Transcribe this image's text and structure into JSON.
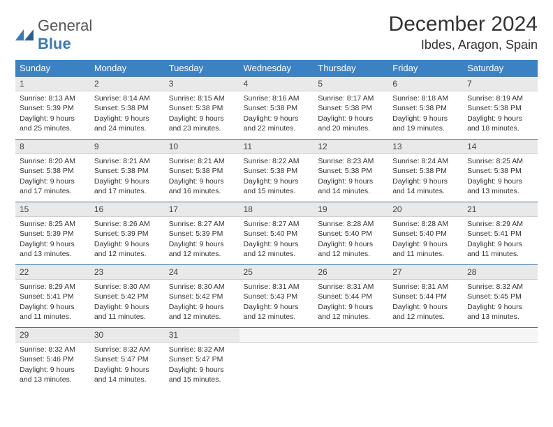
{
  "brand": {
    "general": "General",
    "blue": "Blue"
  },
  "title": "December 2024",
  "location": "Ibdes, Aragon, Spain",
  "colors": {
    "header_bg": "#3b82c4",
    "header_text": "#ffffff",
    "row_divider": "#3b6fa0",
    "daynum_bg": "#e9e9e9",
    "text": "#333333"
  },
  "weekdays": [
    "Sunday",
    "Monday",
    "Tuesday",
    "Wednesday",
    "Thursday",
    "Friday",
    "Saturday"
  ],
  "weeks": [
    [
      {
        "n": "1",
        "sr": "Sunrise: 8:13 AM",
        "ss": "Sunset: 5:39 PM",
        "d1": "Daylight: 9 hours",
        "d2": "and 25 minutes."
      },
      {
        "n": "2",
        "sr": "Sunrise: 8:14 AM",
        "ss": "Sunset: 5:38 PM",
        "d1": "Daylight: 9 hours",
        "d2": "and 24 minutes."
      },
      {
        "n": "3",
        "sr": "Sunrise: 8:15 AM",
        "ss": "Sunset: 5:38 PM",
        "d1": "Daylight: 9 hours",
        "d2": "and 23 minutes."
      },
      {
        "n": "4",
        "sr": "Sunrise: 8:16 AM",
        "ss": "Sunset: 5:38 PM",
        "d1": "Daylight: 9 hours",
        "d2": "and 22 minutes."
      },
      {
        "n": "5",
        "sr": "Sunrise: 8:17 AM",
        "ss": "Sunset: 5:38 PM",
        "d1": "Daylight: 9 hours",
        "d2": "and 20 minutes."
      },
      {
        "n": "6",
        "sr": "Sunrise: 8:18 AM",
        "ss": "Sunset: 5:38 PM",
        "d1": "Daylight: 9 hours",
        "d2": "and 19 minutes."
      },
      {
        "n": "7",
        "sr": "Sunrise: 8:19 AM",
        "ss": "Sunset: 5:38 PM",
        "d1": "Daylight: 9 hours",
        "d2": "and 18 minutes."
      }
    ],
    [
      {
        "n": "8",
        "sr": "Sunrise: 8:20 AM",
        "ss": "Sunset: 5:38 PM",
        "d1": "Daylight: 9 hours",
        "d2": "and 17 minutes."
      },
      {
        "n": "9",
        "sr": "Sunrise: 8:21 AM",
        "ss": "Sunset: 5:38 PM",
        "d1": "Daylight: 9 hours",
        "d2": "and 17 minutes."
      },
      {
        "n": "10",
        "sr": "Sunrise: 8:21 AM",
        "ss": "Sunset: 5:38 PM",
        "d1": "Daylight: 9 hours",
        "d2": "and 16 minutes."
      },
      {
        "n": "11",
        "sr": "Sunrise: 8:22 AM",
        "ss": "Sunset: 5:38 PM",
        "d1": "Daylight: 9 hours",
        "d2": "and 15 minutes."
      },
      {
        "n": "12",
        "sr": "Sunrise: 8:23 AM",
        "ss": "Sunset: 5:38 PM",
        "d1": "Daylight: 9 hours",
        "d2": "and 14 minutes."
      },
      {
        "n": "13",
        "sr": "Sunrise: 8:24 AM",
        "ss": "Sunset: 5:38 PM",
        "d1": "Daylight: 9 hours",
        "d2": "and 14 minutes."
      },
      {
        "n": "14",
        "sr": "Sunrise: 8:25 AM",
        "ss": "Sunset: 5:38 PM",
        "d1": "Daylight: 9 hours",
        "d2": "and 13 minutes."
      }
    ],
    [
      {
        "n": "15",
        "sr": "Sunrise: 8:25 AM",
        "ss": "Sunset: 5:39 PM",
        "d1": "Daylight: 9 hours",
        "d2": "and 13 minutes."
      },
      {
        "n": "16",
        "sr": "Sunrise: 8:26 AM",
        "ss": "Sunset: 5:39 PM",
        "d1": "Daylight: 9 hours",
        "d2": "and 12 minutes."
      },
      {
        "n": "17",
        "sr": "Sunrise: 8:27 AM",
        "ss": "Sunset: 5:39 PM",
        "d1": "Daylight: 9 hours",
        "d2": "and 12 minutes."
      },
      {
        "n": "18",
        "sr": "Sunrise: 8:27 AM",
        "ss": "Sunset: 5:40 PM",
        "d1": "Daylight: 9 hours",
        "d2": "and 12 minutes."
      },
      {
        "n": "19",
        "sr": "Sunrise: 8:28 AM",
        "ss": "Sunset: 5:40 PM",
        "d1": "Daylight: 9 hours",
        "d2": "and 12 minutes."
      },
      {
        "n": "20",
        "sr": "Sunrise: 8:28 AM",
        "ss": "Sunset: 5:40 PM",
        "d1": "Daylight: 9 hours",
        "d2": "and 11 minutes."
      },
      {
        "n": "21",
        "sr": "Sunrise: 8:29 AM",
        "ss": "Sunset: 5:41 PM",
        "d1": "Daylight: 9 hours",
        "d2": "and 11 minutes."
      }
    ],
    [
      {
        "n": "22",
        "sr": "Sunrise: 8:29 AM",
        "ss": "Sunset: 5:41 PM",
        "d1": "Daylight: 9 hours",
        "d2": "and 11 minutes."
      },
      {
        "n": "23",
        "sr": "Sunrise: 8:30 AM",
        "ss": "Sunset: 5:42 PM",
        "d1": "Daylight: 9 hours",
        "d2": "and 11 minutes."
      },
      {
        "n": "24",
        "sr": "Sunrise: 8:30 AM",
        "ss": "Sunset: 5:42 PM",
        "d1": "Daylight: 9 hours",
        "d2": "and 12 minutes."
      },
      {
        "n": "25",
        "sr": "Sunrise: 8:31 AM",
        "ss": "Sunset: 5:43 PM",
        "d1": "Daylight: 9 hours",
        "d2": "and 12 minutes."
      },
      {
        "n": "26",
        "sr": "Sunrise: 8:31 AM",
        "ss": "Sunset: 5:44 PM",
        "d1": "Daylight: 9 hours",
        "d2": "and 12 minutes."
      },
      {
        "n": "27",
        "sr": "Sunrise: 8:31 AM",
        "ss": "Sunset: 5:44 PM",
        "d1": "Daylight: 9 hours",
        "d2": "and 12 minutes."
      },
      {
        "n": "28",
        "sr": "Sunrise: 8:32 AM",
        "ss": "Sunset: 5:45 PM",
        "d1": "Daylight: 9 hours",
        "d2": "and 13 minutes."
      }
    ],
    [
      {
        "n": "29",
        "sr": "Sunrise: 8:32 AM",
        "ss": "Sunset: 5:46 PM",
        "d1": "Daylight: 9 hours",
        "d2": "and 13 minutes."
      },
      {
        "n": "30",
        "sr": "Sunrise: 8:32 AM",
        "ss": "Sunset: 5:47 PM",
        "d1": "Daylight: 9 hours",
        "d2": "and 14 minutes."
      },
      {
        "n": "31",
        "sr": "Sunrise: 8:32 AM",
        "ss": "Sunset: 5:47 PM",
        "d1": "Daylight: 9 hours",
        "d2": "and 15 minutes."
      },
      {
        "empty": true
      },
      {
        "empty": true
      },
      {
        "empty": true
      },
      {
        "empty": true
      }
    ]
  ]
}
